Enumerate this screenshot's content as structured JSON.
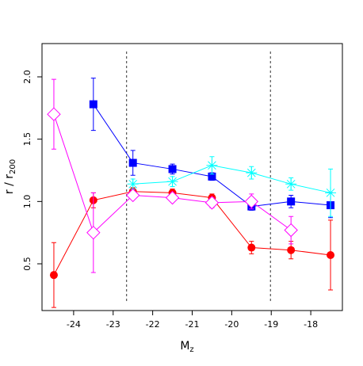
{
  "chart_data": {
    "type": "line",
    "xlabel": {
      "main": "M",
      "sub": "z"
    },
    "ylabel": {
      "main": "r / r",
      "sub": "200"
    },
    "xlim": [
      -24.8,
      -17.2
    ],
    "ylim": [
      0.125,
      2.267
    ],
    "xticks": [
      -24,
      -23,
      -22,
      -21,
      -20,
      -19,
      -18
    ],
    "yticks": [
      0.5,
      {
        "value": 1,
        "label": "1.0"
      },
      1.5,
      {
        "value": 2,
        "label": "2.0"
      }
    ],
    "vlines": [
      -22.66,
      -19.02
    ],
    "x": [
      -24.5,
      -23.5,
      -22.5,
      -21.5,
      -20.5,
      -19.5,
      -18.5,
      -17.5
    ],
    "series": [
      {
        "color": "#ff0000",
        "marker": "circle",
        "values": [
          0.41,
          1.01,
          1.08,
          1.07,
          1.03,
          0.63,
          0.61,
          0.57
        ],
        "errors": [
          0.26,
          0.06,
          0.03,
          0.03,
          0.03,
          0.05,
          0.07,
          0.28
        ]
      },
      {
        "color": "#0000ff",
        "marker": "square",
        "values": [
          null,
          1.78,
          1.31,
          1.26,
          1.2,
          0.96,
          1.0,
          0.97
        ],
        "errors": [
          null,
          0.21,
          0.1,
          0.04,
          0.03,
          0.03,
          0.05,
          0.1
        ]
      },
      {
        "color": "#00ffff",
        "marker": "star",
        "values": [
          null,
          null,
          1.14,
          1.16,
          1.29,
          1.23,
          1.14,
          1.07
        ],
        "errors": [
          null,
          null,
          0.04,
          0.04,
          0.07,
          0.05,
          0.05,
          0.19
        ]
      },
      {
        "color": "#ff00ff",
        "marker": "diamond",
        "values": [
          1.7,
          0.75,
          1.05,
          1.03,
          0.99,
          1.0,
          0.77,
          null
        ],
        "errors": [
          0.28,
          0.32,
          0.03,
          0.03,
          0.04,
          0.06,
          0.11,
          null
        ]
      }
    ]
  }
}
